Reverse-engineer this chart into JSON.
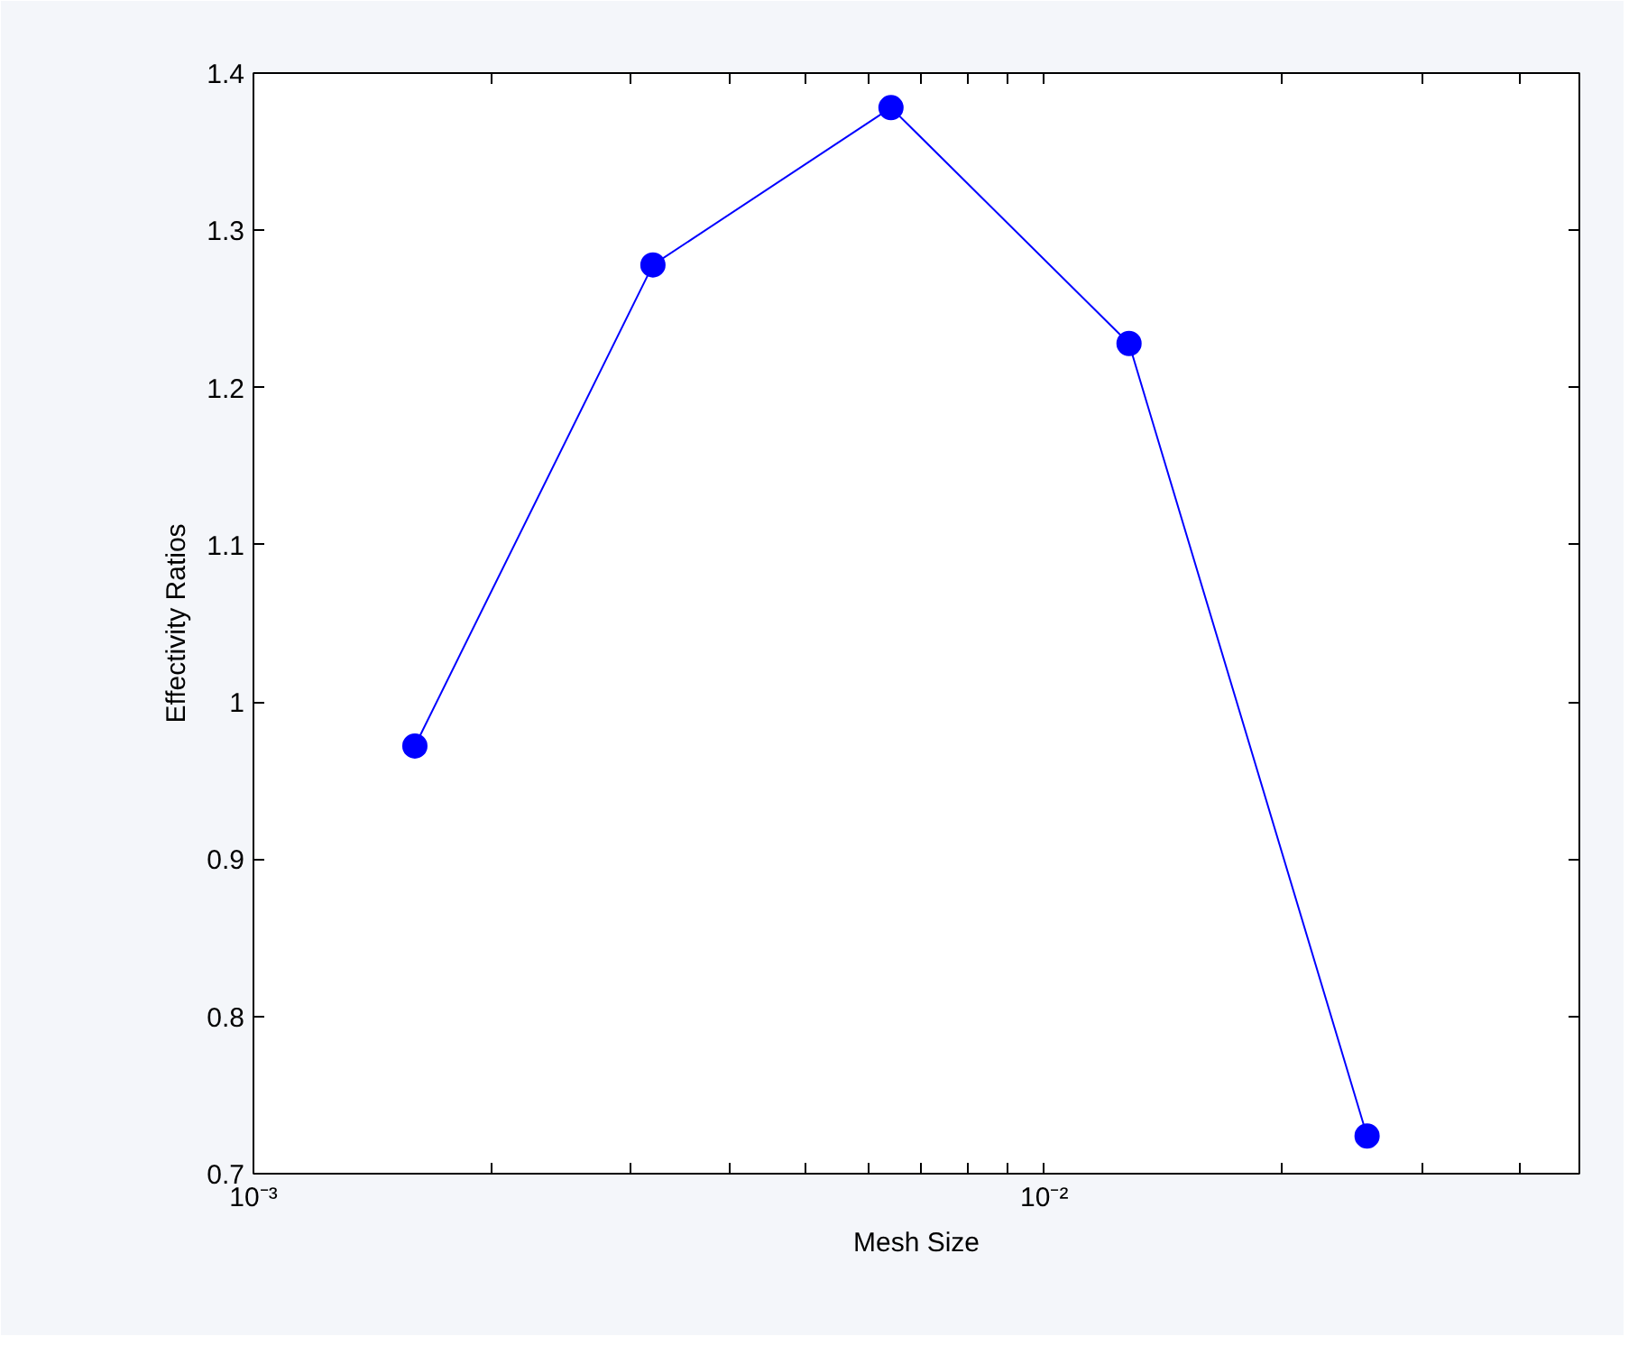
{
  "chart_data": {
    "type": "line",
    "xlabel": "Mesh Size",
    "ylabel": "Effectivity Ratios",
    "x": [
      0.0016,
      0.0032,
      0.0064,
      0.0128,
      0.0256
    ],
    "series": [
      {
        "color": "#0000ff",
        "values": [
          0.972,
          1.278,
          1.378,
          1.228,
          0.724
        ]
      }
    ],
    "log": "x",
    "xlim": [
      0.001,
      0.0475
    ],
    "ylim": [
      0.7,
      1.4
    ],
    "xticks": [
      {
        "value": 0.001,
        "label": "10⁻³"
      },
      {
        "value": 0.002,
        "label": null
      },
      {
        "value": 0.003,
        "label": null
      },
      {
        "value": 0.004,
        "label": null
      },
      {
        "value": 0.005,
        "label": null
      },
      {
        "value": 0.006,
        "label": null
      },
      {
        "value": 0.007,
        "label": null
      },
      {
        "value": 0.008,
        "label": null
      },
      {
        "value": 0.009,
        "label": null
      },
      {
        "value": 0.01,
        "label": "10⁻²"
      },
      {
        "value": 0.02,
        "label": null
      },
      {
        "value": 0.03,
        "label": null
      },
      {
        "value": 0.04,
        "label": null
      }
    ],
    "yticks": [
      {
        "value": 0.7,
        "label": "0.7"
      },
      {
        "value": 0.8,
        "label": "0.8"
      },
      {
        "value": 0.9,
        "label": "0.9"
      },
      {
        "value": 1,
        "label": "1"
      },
      {
        "value": 1.1,
        "label": "1.1"
      },
      {
        "value": 1.2,
        "label": "1.2"
      },
      {
        "value": 1.3,
        "label": "1.3"
      },
      {
        "value": 1.4,
        "label": "1.4"
      }
    ],
    "marker": "circle",
    "line_style": "solid"
  }
}
